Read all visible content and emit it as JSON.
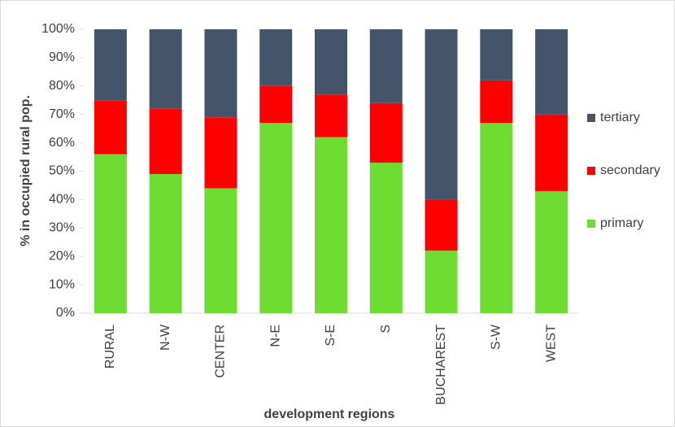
{
  "chart_data": {
    "type": "stacked_bar",
    "x_label": "development regions",
    "y_label": "% in occupied rural pop.",
    "categories": [
      "RURAL",
      "N-W",
      "CENTER",
      "N-E",
      "S-E",
      "S",
      "BUCHAREST",
      "S-W",
      "WEST"
    ],
    "series": [
      {
        "name": "primary",
        "color": "#6fdc32",
        "values": [
          56,
          49,
          44,
          67,
          62,
          53,
          22,
          67,
          43
        ]
      },
      {
        "name": "secondary",
        "color": "#ff0000",
        "values": [
          19,
          23,
          25,
          13,
          15,
          21,
          18,
          15,
          27
        ]
      },
      {
        "name": "tertiary",
        "color": "#44546a",
        "values": [
          25,
          28,
          31,
          20,
          23,
          26,
          60,
          18,
          30
        ]
      }
    ],
    "ylim": [
      0,
      100
    ],
    "yticks": [
      {
        "value": 0,
        "label": "0%"
      },
      {
        "value": 10,
        "label": "10%"
      },
      {
        "value": 20,
        "label": "20%"
      },
      {
        "value": 30,
        "label": "30%"
      },
      {
        "value": 40,
        "label": "40%"
      },
      {
        "value": 50,
        "label": "50%"
      },
      {
        "value": 60,
        "label": "60%"
      },
      {
        "value": 70,
        "label": "70%"
      },
      {
        "value": 80,
        "label": "80%"
      },
      {
        "value": 90,
        "label": "90%"
      },
      {
        "value": 100,
        "label": "100%"
      }
    ],
    "legend": "right"
  }
}
